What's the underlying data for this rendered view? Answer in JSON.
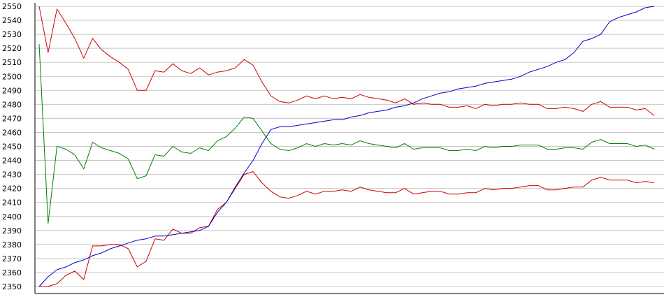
{
  "chart_data": {
    "type": "line",
    "ylim": [
      2350,
      2550
    ],
    "y_ticks": [
      "2550",
      "2540",
      "2530",
      "2520",
      "2510",
      "2500",
      "2490",
      "2480",
      "2470",
      "2460",
      "2450",
      "2440",
      "2430",
      "2420",
      "2410",
      "2400",
      "2390",
      "2380",
      "2370",
      "2360",
      "2350"
    ],
    "grid": true,
    "x": [
      0,
      1,
      2,
      3,
      4,
      5,
      6,
      7,
      8,
      9,
      10,
      11,
      12,
      13,
      14,
      15,
      16,
      17,
      18,
      19,
      20,
      21,
      22,
      23,
      24,
      25,
      26,
      27,
      28,
      29,
      30,
      31,
      32,
      33,
      34,
      35,
      36,
      37,
      38,
      39,
      40,
      41,
      42,
      43,
      44,
      45,
      46,
      47,
      48,
      49,
      50,
      51,
      52,
      53,
      54,
      55,
      56,
      57,
      58,
      59,
      60,
      61,
      62,
      63,
      64,
      65,
      66,
      67,
      68,
      69
    ],
    "series": [
      {
        "color": "#cc0000",
        "values": [
          2550,
          2517,
          2548,
          2538,
          2527,
          2513,
          2527,
          2519,
          2514,
          2510,
          2505,
          2490,
          2490,
          2504,
          2503,
          2509,
          2504,
          2502,
          2506,
          2501,
          2503,
          2504,
          2506,
          2512,
          2508,
          2496,
          2486,
          2482,
          2481,
          2483,
          2486,
          2484,
          2486,
          2484,
          2485,
          2484,
          2487,
          2485,
          2484,
          2483,
          2481,
          2484,
          2480,
          2481,
          2480,
          2480,
          2478,
          2478,
          2479,
          2477,
          2480,
          2479,
          2480,
          2480,
          2481,
          2480,
          2480,
          2477,
          2477,
          2478,
          2477,
          2475,
          2480,
          2482,
          2478,
          2478,
          2478,
          2476,
          2477,
          2472
        ]
      },
      {
        "color": "#008000",
        "values": [
          2523,
          2395,
          2450,
          2448,
          2444,
          2434,
          2453,
          2449,
          2447,
          2445,
          2441,
          2427,
          2429,
          2444,
          2443,
          2450,
          2446,
          2445,
          2449,
          2447,
          2454,
          2457,
          2463,
          2471,
          2470,
          2461,
          2452,
          2448,
          2447,
          2449,
          2452,
          2450,
          2452,
          2451,
          2452,
          2451,
          2454,
          2452,
          2451,
          2450,
          2449,
          2452,
          2448,
          2449,
          2449,
          2449,
          2447,
          2447,
          2448,
          2447,
          2450,
          2449,
          2450,
          2450,
          2451,
          2451,
          2451,
          2448,
          2448,
          2449,
          2449,
          2448,
          2453,
          2455,
          2452,
          2452,
          2452,
          2450,
          2451,
          2448
        ]
      },
      {
        "color": "#cc0000",
        "values": [
          2350,
          2350,
          2352,
          2358,
          2361,
          2355,
          2379,
          2379,
          2380,
          2380,
          2377,
          2364,
          2368,
          2384,
          2383,
          2391,
          2388,
          2388,
          2392,
          2393,
          2405,
          2410,
          2420,
          2430,
          2432,
          2424,
          2418,
          2414,
          2413,
          2415,
          2418,
          2416,
          2418,
          2418,
          2419,
          2418,
          2421,
          2419,
          2418,
          2417,
          2417,
          2420,
          2416,
          2417,
          2418,
          2418,
          2416,
          2416,
          2417,
          2417,
          2420,
          2419,
          2420,
          2420,
          2421,
          2422,
          2422,
          2419,
          2419,
          2420,
          2421,
          2421,
          2426,
          2428,
          2426,
          2426,
          2426,
          2424,
          2425,
          2424
        ]
      },
      {
        "color": "#0000cc",
        "values": [
          2350,
          2357,
          2362,
          2364,
          2367,
          2369,
          2372,
          2374,
          2377,
          2379,
          2381,
          2383,
          2384,
          2386,
          2386,
          2387,
          2388,
          2389,
          2390,
          2393,
          2403,
          2410,
          2421,
          2431,
          2440,
          2452,
          2462,
          2464,
          2464,
          2465,
          2466,
          2467,
          2468,
          2469,
          2469,
          2471,
          2472,
          2474,
          2475,
          2476,
          2478,
          2479,
          2481,
          2484,
          2486,
          2488,
          2489,
          2491,
          2492,
          2493,
          2495,
          2496,
          2497,
          2498,
          2500,
          2503,
          2505,
          2507,
          2510,
          2512,
          2517,
          2525,
          2527,
          2530,
          2539,
          2542,
          2544,
          2546,
          2549,
          2550
        ]
      }
    ]
  }
}
